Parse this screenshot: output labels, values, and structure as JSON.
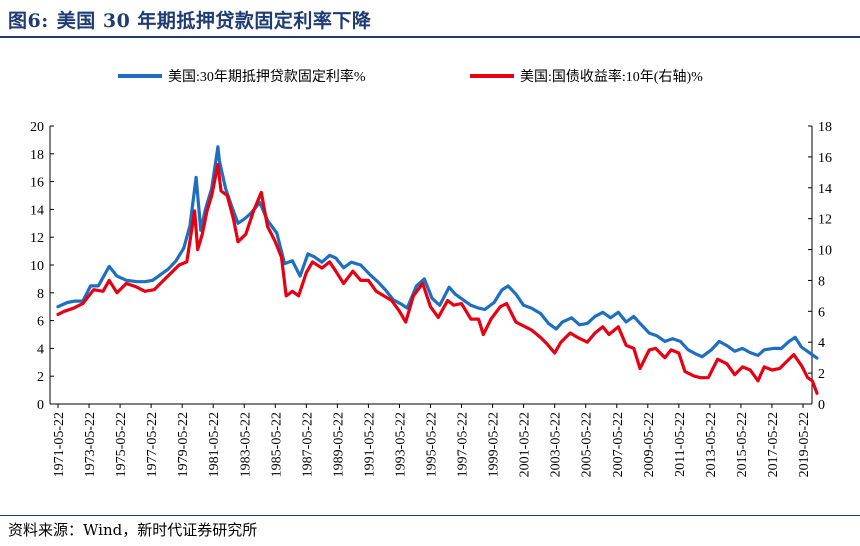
{
  "figure": {
    "number": "图6:",
    "title": "美国 30 年期抵押贷款固定利率下降",
    "source": "资料来源：Wind，新时代证券研究所"
  },
  "colors": {
    "mortgage": "#1f6fc1",
    "treasury": "#e60012",
    "header": "#1f3b73"
  },
  "chart_data": {
    "type": "line",
    "title": "",
    "x_tick_labels": [
      "1971-05-22",
      "1973-05-22",
      "1975-05-22",
      "1977-05-22",
      "1979-05-22",
      "1981-05-22",
      "1983-05-22",
      "1985-05-22",
      "1987-05-22",
      "1989-05-22",
      "1991-05-22",
      "1993-05-22",
      "1995-05-22",
      "1997-05-22",
      "1999-05-22",
      "2001-05-22",
      "2003-05-22",
      "2005-05-22",
      "2007-05-22",
      "2009-05-22",
      "2011-05-22",
      "2013-05-22",
      "2015-05-22",
      "2017-05-22",
      "2019-05-22"
    ],
    "y_left": {
      "min": 0,
      "max": 20,
      "ticks": [
        0,
        2,
        4,
        6,
        8,
        10,
        12,
        14,
        16,
        18,
        20
      ]
    },
    "y_right": {
      "min": 0,
      "max": 18,
      "ticks": [
        0,
        2,
        4,
        6,
        8,
        10,
        12,
        14,
        16,
        18
      ]
    },
    "grid": false,
    "legend_position": "top",
    "series": [
      {
        "name": "美国:30年期抵押贷款固定利率%",
        "axis": "left",
        "x": [
          1971.4,
          1972.0,
          1972.5,
          1973.0,
          1973.5,
          1974.0,
          1974.7,
          1975.2,
          1975.8,
          1976.5,
          1977.0,
          1977.5,
          1978.0,
          1978.5,
          1979.0,
          1979.5,
          1979.9,
          1980.3,
          1980.6,
          1980.9,
          1981.3,
          1981.7,
          1981.8,
          1982.2,
          1982.6,
          1983.0,
          1983.4,
          1983.8,
          1984.4,
          1984.9,
          1985.5,
          1986.0,
          1986.5,
          1987.0,
          1987.5,
          1987.9,
          1988.4,
          1988.9,
          1989.3,
          1989.8,
          1990.3,
          1990.9,
          1991.5,
          1992.0,
          1992.5,
          1993.0,
          1993.5,
          1993.9,
          1994.5,
          1995.0,
          1995.5,
          1996.0,
          1996.6,
          1997.0,
          1997.5,
          1998.0,
          1998.5,
          1998.9,
          1999.5,
          2000.0,
          2000.4,
          2000.9,
          2001.4,
          2001.9,
          2002.5,
          2003.0,
          2003.5,
          2003.9,
          2004.5,
          2005.0,
          2005.5,
          2006.0,
          2006.5,
          2007.0,
          2007.5,
          2008.0,
          2008.5,
          2008.9,
          2009.5,
          2010.0,
          2010.5,
          2011.0,
          2011.5,
          2012.0,
          2012.5,
          2012.9,
          2013.5,
          2014.0,
          2014.5,
          2015.0,
          2015.5,
          2016.0,
          2016.5,
          2016.9,
          2017.5,
          2018.0,
          2018.5,
          2018.9,
          2019.3,
          2019.8,
          2020.3
        ],
        "values": [
          7.0,
          7.3,
          7.4,
          7.4,
          8.5,
          8.5,
          9.9,
          9.2,
          8.9,
          8.8,
          8.8,
          8.9,
          9.3,
          9.7,
          10.3,
          11.2,
          12.8,
          16.3,
          12.5,
          14.0,
          15.5,
          18.5,
          17.5,
          15.5,
          14.2,
          13.0,
          13.3,
          13.7,
          14.5,
          13.2,
          12.3,
          10.1,
          10.3,
          9.2,
          10.8,
          10.6,
          10.2,
          10.7,
          10.5,
          9.8,
          10.2,
          10.0,
          9.3,
          8.8,
          8.2,
          7.5,
          7.2,
          6.9,
          8.5,
          9.0,
          7.6,
          7.1,
          8.4,
          7.9,
          7.5,
          7.1,
          6.9,
          6.8,
          7.3,
          8.2,
          8.5,
          7.9,
          7.1,
          6.9,
          6.5,
          5.8,
          5.4,
          5.9,
          6.2,
          5.7,
          5.8,
          6.3,
          6.6,
          6.2,
          6.6,
          5.9,
          6.3,
          5.8,
          5.1,
          4.9,
          4.5,
          4.7,
          4.5,
          3.9,
          3.6,
          3.4,
          3.9,
          4.5,
          4.2,
          3.8,
          4.0,
          3.7,
          3.5,
          3.9,
          4.0,
          4.0,
          4.5,
          4.8,
          4.1,
          3.7,
          3.3
        ]
      },
      {
        "name": "美国:国债收益率:10年(右轴)%",
        "axis": "right",
        "x": [
          1971.4,
          1971.8,
          1972.4,
          1973.0,
          1973.7,
          1974.3,
          1974.7,
          1975.2,
          1975.8,
          1976.4,
          1977.0,
          1977.6,
          1978.2,
          1978.7,
          1979.2,
          1979.7,
          1980.2,
          1980.4,
          1980.7,
          1981.0,
          1981.3,
          1981.7,
          1981.9,
          1982.3,
          1982.7,
          1983.0,
          1983.5,
          1984.0,
          1984.5,
          1984.9,
          1985.4,
          1985.8,
          1986.1,
          1986.5,
          1986.9,
          1987.4,
          1987.8,
          1988.4,
          1988.9,
          1989.3,
          1989.8,
          1990.4,
          1990.9,
          1991.4,
          1991.9,
          1992.4,
          1992.9,
          1993.4,
          1993.8,
          1994.3,
          1994.9,
          1995.4,
          1995.9,
          1996.5,
          1996.9,
          1997.4,
          1998.0,
          1998.5,
          1998.8,
          1999.3,
          1999.9,
          2000.3,
          2000.9,
          2001.5,
          2001.9,
          2002.5,
          2002.9,
          2003.4,
          2003.8,
          2004.4,
          2004.9,
          2005.5,
          2006.0,
          2006.5,
          2006.9,
          2007.5,
          2008.0,
          2008.5,
          2008.9,
          2009.5,
          2009.9,
          2010.5,
          2010.9,
          2011.4,
          2011.8,
          2012.4,
          2012.8,
          2013.3,
          2013.9,
          2014.5,
          2015.0,
          2015.5,
          2016.0,
          2016.5,
          2016.9,
          2017.4,
          2017.9,
          2018.5,
          2018.8,
          2019.3,
          2019.7,
          2020.0,
          2020.3
        ],
        "values": [
          5.8,
          6.0,
          6.2,
          6.5,
          7.4,
          7.3,
          8.0,
          7.2,
          7.8,
          7.6,
          7.3,
          7.4,
          8.0,
          8.5,
          9.0,
          9.2,
          12.5,
          10.0,
          11.0,
          12.5,
          13.5,
          15.5,
          13.8,
          13.5,
          12.0,
          10.5,
          11.0,
          12.5,
          13.7,
          11.5,
          10.5,
          9.5,
          7.0,
          7.3,
          7.0,
          8.5,
          9.2,
          8.8,
          9.2,
          8.6,
          7.8,
          8.6,
          8.0,
          8.0,
          7.3,
          7.0,
          6.7,
          6.0,
          5.3,
          7.0,
          7.8,
          6.3,
          5.6,
          6.7,
          6.4,
          6.5,
          5.5,
          5.5,
          4.5,
          5.5,
          6.3,
          6.5,
          5.3,
          5.0,
          4.8,
          4.3,
          3.9,
          3.3,
          4.0,
          4.6,
          4.3,
          4.0,
          4.6,
          5.0,
          4.5,
          5.0,
          3.8,
          3.6,
          2.3,
          3.5,
          3.6,
          3.0,
          3.5,
          3.3,
          2.1,
          1.8,
          1.7,
          1.7,
          2.9,
          2.6,
          1.9,
          2.4,
          2.2,
          1.5,
          2.4,
          2.2,
          2.3,
          2.9,
          3.2,
          2.5,
          1.7,
          1.5,
          0.7
        ]
      }
    ]
  }
}
